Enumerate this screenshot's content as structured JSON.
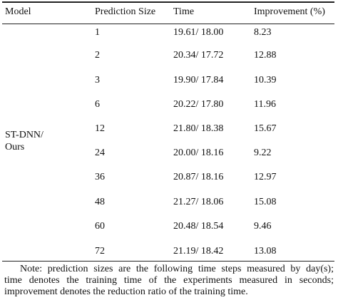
{
  "headers": {
    "model": "Model",
    "prediction_size": "Prediction Size",
    "time": "Time",
    "improvement": "Improvement (%)"
  },
  "model_label": "ST-DNN/ Ours",
  "rows": [
    {
      "size": "1",
      "time": "19.61/ 18.00",
      "improvement": "8.23"
    },
    {
      "size": "2",
      "time": "20.34/ 17.72",
      "improvement": "12.88"
    },
    {
      "size": "3",
      "time": "19.90/ 17.84",
      "improvement": "10.39"
    },
    {
      "size": "6",
      "time": "20.22/ 17.80",
      "improvement": "11.96"
    },
    {
      "size": "12",
      "time": "21.80/ 18.38",
      "improvement": "15.67"
    },
    {
      "size": "24",
      "time": "20.00/ 18.16",
      "improvement": "9.22"
    },
    {
      "size": "36",
      "time": "20.87/ 18.16",
      "improvement": "12.97"
    },
    {
      "size": "48",
      "time": "21.27/ 18.06",
      "improvement": "15.08"
    },
    {
      "size": "60",
      "time": "20.48/ 18.54",
      "improvement": "9.46"
    },
    {
      "size": "72",
      "time": "21.19/ 18.42",
      "improvement": "13.08"
    }
  ],
  "note": {
    "line1": "Note: prediction sizes are the following time steps measured by day(s);",
    "line2": "time denotes the training time of the experiments measured in seconds;",
    "line3": "improvement denotes the reduction ratio of the training time."
  }
}
